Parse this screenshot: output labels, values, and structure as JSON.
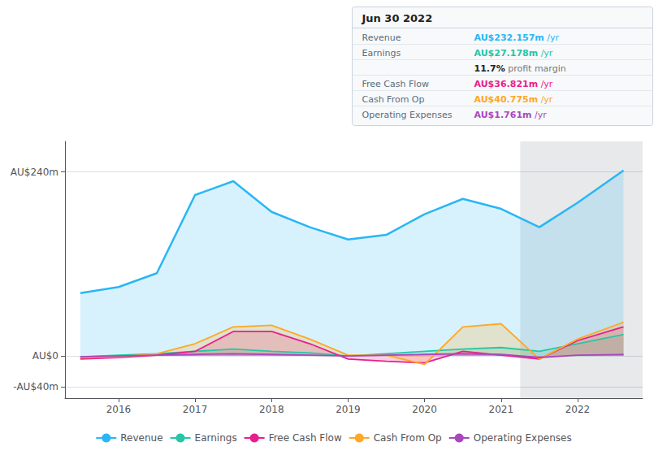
{
  "chart_data": {
    "type": "area",
    "title": "Jun 30 2022",
    "x": [
      2015.5,
      2016.0,
      2016.5,
      2017.0,
      2017.5,
      2018.0,
      2018.5,
      2019.0,
      2019.5,
      2020.0,
      2020.5,
      2021.0,
      2021.5,
      2022.0,
      2022.6
    ],
    "series": [
      {
        "name": "Revenue",
        "color": "#29b6f6",
        "values": [
          82,
          90,
          108,
          210,
          228,
          188,
          168,
          152,
          158,
          185,
          205,
          192,
          168,
          200,
          242
        ]
      },
      {
        "name": "Earnings",
        "color": "#26c6a6",
        "values": [
          -1,
          1,
          3,
          6,
          9,
          6,
          4,
          0,
          3,
          6,
          9,
          11,
          6,
          16,
          28
        ]
      },
      {
        "name": "Free Cash Flow",
        "color": "#e91e8c",
        "values": [
          -4,
          -2,
          1,
          6,
          32,
          32,
          16,
          -4,
          -7,
          -9,
          6,
          1,
          -4,
          20,
          38
        ]
      },
      {
        "name": "Cash From Op",
        "color": "#ffa726",
        "values": [
          -2,
          -1,
          3,
          16,
          38,
          40,
          22,
          1,
          1,
          -11,
          38,
          42,
          -4,
          22,
          44
        ]
      },
      {
        "name": "Operating Expenses",
        "color": "#ab47bc",
        "values": [
          -1,
          0,
          1,
          2,
          3,
          2,
          1,
          0,
          1,
          2,
          3,
          2,
          -2,
          1,
          2
        ]
      }
    ],
    "xlim": [
      2015.3,
      2022.85
    ],
    "xticks": [
      2016,
      2017,
      2018,
      2019,
      2020,
      2021,
      2022
    ],
    "ylim": [
      -55,
      280
    ],
    "yticks": [
      {
        "value": -40,
        "label": "-AU$40m"
      },
      {
        "value": 0,
        "label": "AU$0"
      },
      {
        "value": 240,
        "label": "AU$240m"
      }
    ],
    "shaded_x": 2021.25,
    "grid": true,
    "legend": "bottom",
    "annotations": [
      {
        "label": "Revenue",
        "value": "AU$232.157m",
        "suffix": " /yr",
        "color": "#29b6f6"
      },
      {
        "label": "Earnings",
        "value": "AU$27.178m",
        "suffix": " /yr",
        "color": "#26c6a6"
      },
      {
        "value": "11.7%",
        "suffix": " profit margin"
      },
      {
        "label": "Free Cash Flow",
        "value": "AU$36.821m",
        "suffix": " /yr",
        "color": "#e91e8c"
      },
      {
        "label": "Cash From Op",
        "value": "AU$40.775m",
        "suffix": " /yr",
        "color": "#ffa726"
      },
      {
        "label": "Operating Expenses",
        "value": "AU$1.761m",
        "suffix": " /yr",
        "color": "#ab47bc"
      }
    ]
  }
}
